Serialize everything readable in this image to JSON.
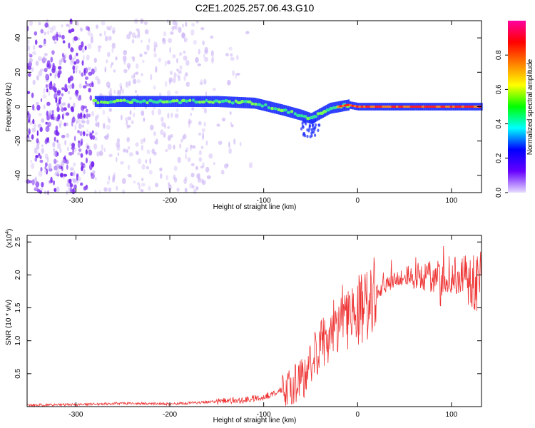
{
  "figure_title": "C2E1.2025.257.06.43.G10",
  "chart_data": [
    {
      "type": "heatmap",
      "title": "C2E1.2025.257.06.43.G10",
      "xlabel": "Height of straight line (km)",
      "ylabel": "Frequency (Hz)",
      "xlim": [
        -352,
        132
      ],
      "ylim": [
        -50,
        50
      ],
      "xticks": [
        -300,
        -200,
        -100,
        0,
        100
      ],
      "xtick_labels": [
        "-300",
        "-200",
        "-100",
        "0",
        "100"
      ],
      "yticks": [
        -40,
        -20,
        0,
        20,
        40
      ],
      "ytick_labels": [
        "-40",
        "-20",
        "0",
        "20",
        "40"
      ],
      "ridge_x": [
        -280,
        -250,
        -200,
        -150,
        -110,
        -80,
        -60,
        -50,
        -40,
        -30,
        -20,
        -10,
        0,
        50,
        100,
        130
      ],
      "ridge_y": [
        3,
        3,
        3,
        3,
        2,
        -2,
        -5,
        -7,
        -4,
        -1,
        0,
        1,
        0,
        0,
        0,
        0
      ],
      "noise_region_x": [
        -352,
        -280
      ],
      "colorbar": {
        "label": "Normalized spectral amplitude",
        "range": [
          0,
          1
        ],
        "ticks": [
          0.0,
          0.2,
          0.4,
          0.6,
          0.8
        ],
        "tick_labels": [
          "0.0",
          "0.2",
          "0.4",
          "0.6",
          "0.8"
        ],
        "colors": [
          "#e6dcff",
          "#6600ff",
          "#0000ff",
          "#00ffff",
          "#00ff00",
          "#ffff00",
          "#ff8000",
          "#ff0000",
          "#ff00a0"
        ]
      },
      "colors": {
        "noise": "#7a2cf0",
        "ridge_low": "#1a2bff",
        "ridge_mid": "#33e0a0",
        "ridge_high": "#ff2020"
      }
    },
    {
      "type": "line",
      "xlabel": "Height of straight line (km)",
      "ylabel": "SNR (10 * v/v)",
      "exponent_label": "(x10",
      "exponent_power": "4",
      "exponent_close": ")",
      "xlim": [
        -352,
        132
      ],
      "ylim": [
        0,
        2.6
      ],
      "xticks": [
        -300,
        -200,
        -100,
        0,
        100
      ],
      "xtick_labels": [
        "-300",
        "-200",
        "-100",
        "0",
        "100"
      ],
      "yticks": [
        0.5,
        1.0,
        1.5,
        2.0,
        2.5
      ],
      "ytick_labels": [
        "0.5",
        "1.0",
        "1.5",
        "2.0",
        "2.5"
      ],
      "series": [
        {
          "name": "SNR",
          "color": "#ee3333",
          "x": [
            -352,
            -300,
            -250,
            -200,
            -170,
            -150,
            -120,
            -100,
            -80,
            -60,
            -50,
            -40,
            -30,
            -20,
            -10,
            0,
            10,
            20,
            30,
            40,
            50,
            70,
            100,
            130
          ],
          "y": [
            0.02,
            0.03,
            0.05,
            0.04,
            0.06,
            0.08,
            0.1,
            0.15,
            0.25,
            0.4,
            0.65,
            0.9,
            1.1,
            1.3,
            1.4,
            1.45,
            1.6,
            1.75,
            1.85,
            1.93,
            1.97,
            1.98,
            1.95,
            1.9
          ]
        }
      ]
    }
  ]
}
